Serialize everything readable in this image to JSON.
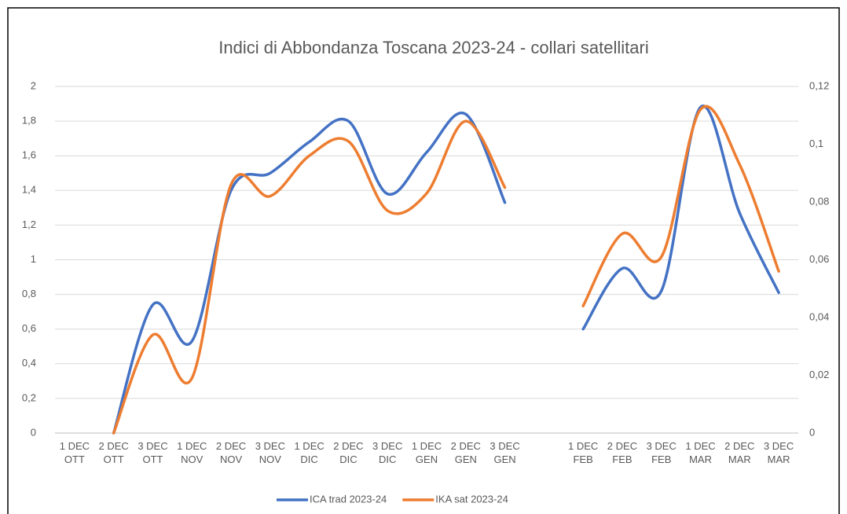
{
  "chart_data": {
    "type": "line",
    "title": "Indici di Abbondanza Toscana 2023-24 - collari satellitari",
    "categories": [
      "1 DEC OTT",
      "2 DEC OTT",
      "3 DEC OTT",
      "1 DEC NOV",
      "2 DEC NOV",
      "3 DEC NOV",
      "1 DEC DIC",
      "2 DEC DIC",
      "3 DEC DIC",
      "1 DEC GEN",
      "2 DEC GEN",
      "3 DEC GEN",
      null,
      "1 DEC FEB",
      "2 DEC FEB",
      "3 DEC FEB",
      "1 DEC MAR",
      "2 DEC MAR",
      "3 DEC MAR"
    ],
    "series": [
      {
        "name": "ICA trad 2023-24",
        "color": "#4472c4",
        "axis": "y",
        "values": [
          null,
          0,
          0.74,
          0.53,
          1.4,
          1.5,
          1.68,
          1.8,
          1.38,
          1.62,
          1.84,
          1.33,
          null,
          0.6,
          0.95,
          0.82,
          1.88,
          1.27,
          0.81
        ]
      },
      {
        "name": "IKA sat 2023-24",
        "color": "#ed7d31",
        "axis": "y2",
        "values": [
          null,
          0,
          0.034,
          0.019,
          0.086,
          0.082,
          0.096,
          0.101,
          0.077,
          0.083,
          0.108,
          0.085,
          null,
          0.044,
          0.069,
          0.061,
          0.112,
          0.093,
          0.056
        ]
      }
    ],
    "ylim": [
      0,
      2
    ],
    "yticks": [
      0,
      {
        "value": 0.2,
        "label": "0,2"
      },
      {
        "value": 0.4,
        "label": "0,4"
      },
      {
        "value": 0.6,
        "label": "0,6"
      },
      {
        "value": 0.8,
        "label": "0,8"
      },
      1,
      {
        "value": 1.2,
        "label": "1,2"
      },
      {
        "value": 1.4,
        "label": "1,4"
      },
      {
        "value": 1.6,
        "label": "1,6"
      },
      {
        "value": 1.8,
        "label": "1,8"
      },
      2
    ],
    "y2lim": [
      0,
      0.12
    ],
    "y2ticks": [
      0,
      {
        "value": 0.02,
        "label": "0,02"
      },
      {
        "value": 0.04,
        "label": "0,04"
      },
      {
        "value": 0.06,
        "label": "0,06"
      },
      {
        "value": 0.08,
        "label": "0,08"
      },
      {
        "value": 0.1,
        "label": "0,1"
      },
      {
        "value": 0.12,
        "label": "0,12"
      }
    ],
    "grid": true,
    "legend": "bottom"
  }
}
